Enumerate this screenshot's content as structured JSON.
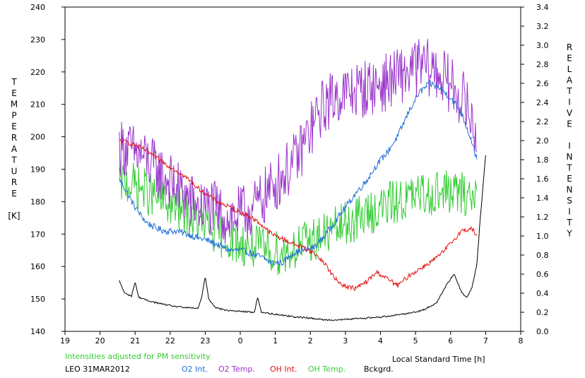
{
  "chart_data": {
    "type": "line",
    "station": "LEO 31MAR2012",
    "note": "Intensities adjusted for PM sensitivity",
    "xlabel": "Local Standard Time [h]",
    "ylabel_left_letters": [
      "T",
      "E",
      "M",
      "P",
      "E",
      "R",
      "A",
      "T",
      "U",
      "R",
      "E",
      "",
      "[K]"
    ],
    "ylabel_right_letters": [
      "R",
      "E",
      "L",
      "A",
      "T",
      "I",
      "V",
      "E",
      "",
      "I",
      "N",
      "T",
      "E",
      "N",
      "S",
      "I",
      "T",
      "Y"
    ],
    "x_ticks": [
      "19",
      "20",
      "21",
      "22",
      "23",
      "0",
      "1",
      "2",
      "3",
      "4",
      "5",
      "6",
      "7",
      "8"
    ],
    "xlim": [
      19,
      32
    ],
    "y_left": {
      "min": 140,
      "max": 240,
      "ticks": [
        "140",
        "150",
        "160",
        "170",
        "180",
        "190",
        "200",
        "210",
        "220",
        "230",
        "240"
      ]
    },
    "y_right": {
      "min": 0.0,
      "max": 3.4,
      "ticks": [
        "0.0",
        "0.2",
        "0.4",
        "0.6",
        "0.8",
        "1.0",
        "1.2",
        "1.4",
        "1.6",
        "1.8",
        "2.0",
        "2.2",
        "2.4",
        "2.6",
        "2.8",
        "3.0",
        "3.2",
        "3.4"
      ]
    },
    "grid": false,
    "series": [
      {
        "name": "O2 Int.",
        "axis": "right",
        "color": "#1f6fd6",
        "noise": 0.035,
        "steps": 480,
        "x": [
          20.55,
          20.7,
          21.0,
          21.3,
          21.6,
          21.9,
          22.2,
          22.5,
          22.8,
          23.1,
          23.4,
          23.7,
          24.0,
          24.3,
          24.6,
          24.9,
          25.2,
          25.5,
          25.8,
          26.1,
          26.4,
          26.7,
          27.0,
          27.3,
          27.6,
          27.9,
          28.2,
          28.5,
          28.8,
          29.1,
          29.4,
          29.7,
          30.0,
          30.3,
          30.6,
          30.75
        ],
        "y": [
          1.6,
          1.5,
          1.3,
          1.15,
          1.08,
          1.05,
          1.05,
          1.02,
          0.98,
          0.95,
          0.9,
          0.85,
          0.85,
          0.82,
          0.78,
          0.72,
          0.72,
          0.82,
          0.85,
          0.88,
          1.0,
          1.15,
          1.3,
          1.45,
          1.58,
          1.75,
          1.88,
          2.05,
          2.3,
          2.5,
          2.6,
          2.55,
          2.45,
          2.3,
          2.0,
          1.8
        ]
      },
      {
        "name": "O2 Temp.",
        "axis": "left",
        "color": "#9933cc",
        "noise": 9,
        "steps": 480,
        "x": [
          20.55,
          20.8,
          21.2,
          21.6,
          22.0,
          22.4,
          22.8,
          23.2,
          23.6,
          24.0,
          24.4,
          24.8,
          25.2,
          25.6,
          26.0,
          26.4,
          26.8,
          27.2,
          27.6,
          28.0,
          28.4,
          28.8,
          29.2,
          29.6,
          30.0,
          30.4,
          30.75
        ],
        "y": [
          197,
          196,
          194,
          190,
          186,
          182,
          178,
          178,
          175,
          176,
          178,
          183,
          188,
          193,
          202,
          210,
          213,
          214,
          215,
          216,
          218,
          220,
          222,
          220,
          216,
          211,
          200
        ]
      },
      {
        "name": "OH Int.",
        "axis": "right",
        "color": "#e01010",
        "noise": 0.025,
        "steps": 480,
        "x": [
          20.55,
          20.8,
          21.0,
          21.3,
          21.6,
          21.9,
          22.2,
          22.5,
          22.8,
          23.1,
          23.4,
          23.7,
          24.0,
          24.3,
          24.6,
          24.9,
          25.2,
          25.5,
          25.8,
          26.1,
          26.4,
          26.7,
          27.0,
          27.3,
          27.6,
          27.9,
          28.2,
          28.5,
          28.8,
          29.1,
          29.4,
          29.7,
          30.0,
          30.3,
          30.6,
          30.75
        ],
        "y": [
          2.0,
          1.98,
          1.95,
          1.9,
          1.82,
          1.75,
          1.68,
          1.6,
          1.5,
          1.42,
          1.35,
          1.3,
          1.25,
          1.2,
          1.12,
          1.02,
          0.97,
          0.92,
          0.88,
          0.82,
          0.72,
          0.55,
          0.47,
          0.45,
          0.52,
          0.62,
          0.55,
          0.48,
          0.58,
          0.65,
          0.72,
          0.8,
          0.92,
          1.05,
          1.08,
          1.0
        ]
      },
      {
        "name": "OH Temp.",
        "axis": "left",
        "color": "#33cc33",
        "noise": 7,
        "steps": 480,
        "x": [
          20.55,
          20.8,
          21.2,
          21.6,
          22.0,
          22.4,
          22.8,
          23.2,
          23.6,
          24.0,
          24.4,
          24.8,
          25.2,
          25.6,
          26.0,
          26.4,
          26.8,
          27.2,
          27.6,
          28.0,
          28.4,
          28.8,
          29.2,
          29.6,
          30.0,
          30.4,
          30.75
        ],
        "y": [
          186,
          186,
          184,
          181,
          179,
          177,
          174,
          171,
          169,
          167,
          166,
          165,
          164,
          166,
          168,
          170,
          172,
          174,
          176,
          178,
          180,
          181,
          182,
          183,
          183,
          182,
          182
        ]
      },
      {
        "name": "Bckgrd.",
        "axis": "right",
        "color": "#000000",
        "noise": 0.008,
        "steps": 480,
        "x": [
          20.55,
          20.7,
          20.9,
          21.0,
          21.1,
          21.3,
          21.6,
          22.0,
          22.4,
          22.8,
          22.9,
          23.0,
          23.1,
          23.3,
          23.6,
          24.0,
          24.4,
          24.5,
          24.6,
          24.8,
          25.2,
          25.6,
          26.0,
          26.4,
          26.8,
          27.2,
          27.6,
          28.0,
          28.4,
          28.8,
          29.2,
          29.6,
          29.9,
          30.1,
          30.3,
          30.45,
          30.6,
          30.75,
          30.85,
          31.0
        ],
        "y": [
          0.53,
          0.4,
          0.37,
          0.52,
          0.36,
          0.33,
          0.3,
          0.27,
          0.25,
          0.24,
          0.36,
          0.58,
          0.34,
          0.25,
          0.22,
          0.21,
          0.2,
          0.36,
          0.2,
          0.19,
          0.17,
          0.15,
          0.14,
          0.12,
          0.12,
          0.13,
          0.14,
          0.15,
          0.17,
          0.19,
          0.22,
          0.3,
          0.5,
          0.6,
          0.42,
          0.35,
          0.45,
          0.7,
          1.2,
          1.85
        ]
      }
    ],
    "legend": [
      {
        "label": "O2 Int.",
        "color": "#1f6fd6"
      },
      {
        "label": "O2 Temp.",
        "color": "#9933cc"
      },
      {
        "label": "OH Int.",
        "color": "#e01010"
      },
      {
        "label": "OH Temp.",
        "color": "#33cc33"
      },
      {
        "label": "Bckgrd.",
        "color": "#000000"
      }
    ],
    "note_color": "#33cc33"
  }
}
